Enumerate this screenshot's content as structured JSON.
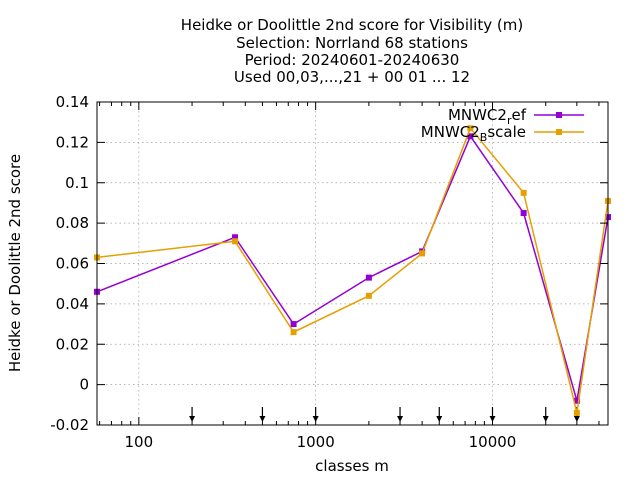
{
  "chart_data": {
    "type": "line",
    "title_lines": [
      "Heidke or Doolittle 2nd score  for Visibility (m)",
      "Selection: Norrland     68 stations",
      "Period: 20240601-20240630",
      "Used 00,03,...,21 + 00 01 ... 12"
    ],
    "xlabel": "classes m",
    "ylabel": "Heidke or Doolittle 2nd score",
    "x_scale": "log",
    "xlim": [
      58,
      45000
    ],
    "ylim": [
      -0.02,
      0.14
    ],
    "x_ticks": [
      {
        "value": 100,
        "label": "100"
      },
      {
        "value": 1000,
        "label": "1000"
      },
      {
        "value": 10000,
        "label": "10000"
      }
    ],
    "y_ticks": [
      {
        "value": -0.02,
        "label": "-0.02"
      },
      {
        "value": 0,
        "label": "0"
      },
      {
        "value": 0.02,
        "label": "0.02"
      },
      {
        "value": 0.04,
        "label": "0.04"
      },
      {
        "value": 0.06,
        "label": "0.06"
      },
      {
        "value": 0.08,
        "label": "0.08"
      },
      {
        "value": 0.1,
        "label": "0.1"
      },
      {
        "value": 0.12,
        "label": "0.12"
      },
      {
        "value": 0.14,
        "label": "0.14"
      }
    ],
    "grid": true,
    "legend_position": "top-right",
    "class_limit_arrows": [
      200,
      500,
      1000,
      3000,
      5000,
      10000,
      20000,
      30000
    ],
    "series": [
      {
        "name": "MNWC2_ref",
        "name_main": "MNWC2",
        "name_sub": "r",
        "name_tail": "ef",
        "color": "#9400d3",
        "points": [
          {
            "x": 58,
            "y": 0.046
          },
          {
            "x": 350,
            "y": 0.073
          },
          {
            "x": 750,
            "y": 0.03
          },
          {
            "x": 2000,
            "y": 0.053
          },
          {
            "x": 4000,
            "y": 0.066
          },
          {
            "x": 7500,
            "y": 0.123
          },
          {
            "x": 15000,
            "y": 0.085
          },
          {
            "x": 30000,
            "y": -0.008
          },
          {
            "x": 45000,
            "y": 0.083
          }
        ]
      },
      {
        "name": "MNWC2_Bscale",
        "name_main": "MNWC2",
        "name_sub": "B",
        "name_tail": "scale",
        "color": "#e69f00",
        "points": [
          {
            "x": 58,
            "y": 0.063
          },
          {
            "x": 350,
            "y": 0.071
          },
          {
            "x": 750,
            "y": 0.026
          },
          {
            "x": 2000,
            "y": 0.044
          },
          {
            "x": 4000,
            "y": 0.065
          },
          {
            "x": 7500,
            "y": 0.127
          },
          {
            "x": 15000,
            "y": 0.095
          },
          {
            "x": 30000,
            "y": -0.014
          },
          {
            "x": 45000,
            "y": 0.091
          }
        ]
      }
    ]
  }
}
